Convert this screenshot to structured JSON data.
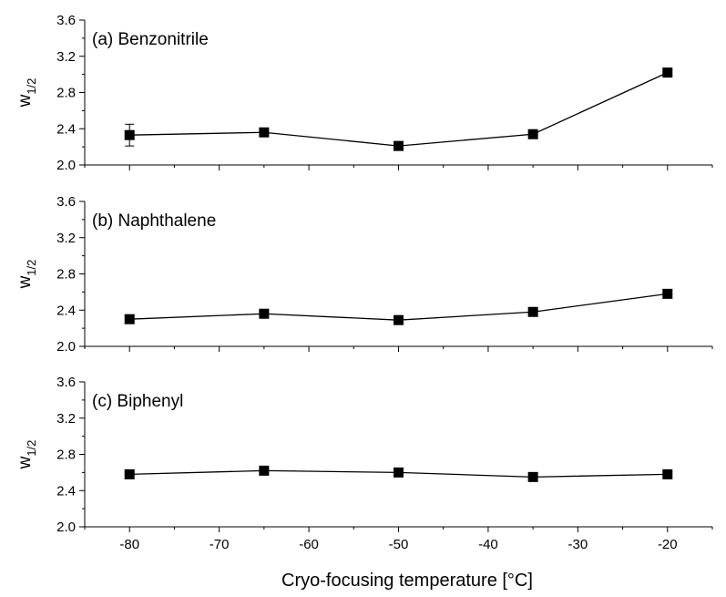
{
  "chart_data": {
    "type": "line",
    "xlabel": "Cryo-focusing temperature [°C]",
    "xlim": [
      -85,
      -15
    ],
    "x_ticks": [
      -80,
      -70,
      -60,
      -50,
      -40,
      -30,
      -20
    ],
    "x_tick_labels": [
      "-80",
      "-70",
      "-60",
      "-50",
      "-40",
      "-30",
      "-20"
    ],
    "ylabel_main": "w",
    "ylabel_sub": "1/2",
    "ylim": [
      2.0,
      3.6
    ],
    "y_ticks": [
      2.0,
      2.4,
      2.8,
      3.2,
      3.6
    ],
    "y_tick_labels": [
      "2.0",
      "2.4",
      "2.8",
      "3.2",
      "3.6"
    ],
    "grid": false,
    "marker": "square",
    "color": "#000000",
    "panels": [
      {
        "label": "(a) Benzonitrile",
        "x": [
          -80,
          -65,
          -50,
          -35,
          -20
        ],
        "y": [
          2.33,
          2.36,
          2.21,
          2.34,
          3.02
        ],
        "error": [
          0.12,
          0.0,
          0.0,
          0.0,
          0.0
        ]
      },
      {
        "label": "(b) Naphthalene",
        "x": [
          -80,
          -65,
          -50,
          -35,
          -20
        ],
        "y": [
          2.3,
          2.36,
          2.29,
          2.38,
          2.58
        ],
        "error": [
          0.0,
          0.0,
          0.0,
          0.0,
          0.0
        ]
      },
      {
        "label": "(c) Biphenyl",
        "x": [
          -80,
          -65,
          -50,
          -35,
          -20
        ],
        "y": [
          2.58,
          2.62,
          2.6,
          2.55,
          2.58
        ],
        "error": [
          0.0,
          0.0,
          0.0,
          0.0,
          0.0
        ]
      }
    ]
  }
}
